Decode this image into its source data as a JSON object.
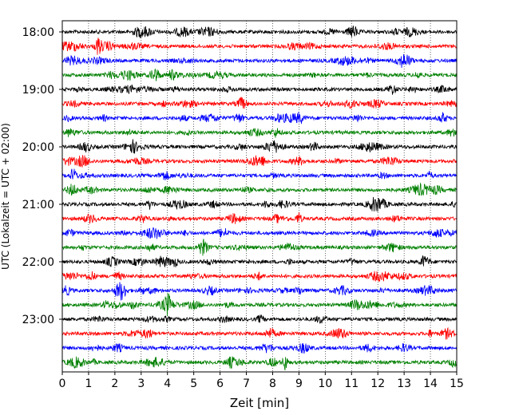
{
  "chart_data": {
    "type": "line",
    "title": "",
    "xlabel": "Zeit  [min]",
    "ylabel": "UTC (Lokalzeit = UTC + 02:00)",
    "xlim": [
      0,
      15
    ],
    "xticks": [
      "0",
      "1",
      "2",
      "3",
      "4",
      "5",
      "6",
      "7",
      "8",
      "9",
      "10",
      "11",
      "12",
      "13",
      "14",
      "15"
    ],
    "yticks": [
      {
        "label": "18:00",
        "hour": 18
      },
      {
        "label": "19:00",
        "hour": 19
      },
      {
        "label": "20:00",
        "hour": 20
      },
      {
        "label": "21:00",
        "hour": 21
      },
      {
        "label": "22:00",
        "hour": 22
      },
      {
        "label": "23:00",
        "hour": 23
      }
    ],
    "grid": "vertical dotted at each minute",
    "trace_colors": [
      "#000000",
      "#ff0000",
      "#0000ff",
      "#008000"
    ],
    "traces": [
      {
        "start": "18:00",
        "color": "#000000"
      },
      {
        "start": "18:15",
        "color": "#ff0000"
      },
      {
        "start": "18:30",
        "color": "#0000ff"
      },
      {
        "start": "18:45",
        "color": "#008000"
      },
      {
        "start": "19:00",
        "color": "#000000"
      },
      {
        "start": "19:15",
        "color": "#ff0000"
      },
      {
        "start": "19:30",
        "color": "#0000ff"
      },
      {
        "start": "19:45",
        "color": "#008000"
      },
      {
        "start": "20:00",
        "color": "#000000"
      },
      {
        "start": "20:15",
        "color": "#ff0000"
      },
      {
        "start": "20:30",
        "color": "#0000ff"
      },
      {
        "start": "20:45",
        "color": "#008000"
      },
      {
        "start": "21:00",
        "color": "#000000"
      },
      {
        "start": "21:15",
        "color": "#ff0000"
      },
      {
        "start": "21:30",
        "color": "#0000ff"
      },
      {
        "start": "21:45",
        "color": "#008000"
      },
      {
        "start": "22:00",
        "color": "#000000"
      },
      {
        "start": "22:15",
        "color": "#ff0000"
      },
      {
        "start": "22:30",
        "color": "#0000ff"
      },
      {
        "start": "22:45",
        "color": "#008000"
      },
      {
        "start": "23:00",
        "color": "#000000"
      },
      {
        "start": "23:15",
        "color": "#ff0000"
      },
      {
        "start": "23:30",
        "color": "#0000ff"
      },
      {
        "start": "23:45",
        "color": "#008000"
      }
    ]
  }
}
